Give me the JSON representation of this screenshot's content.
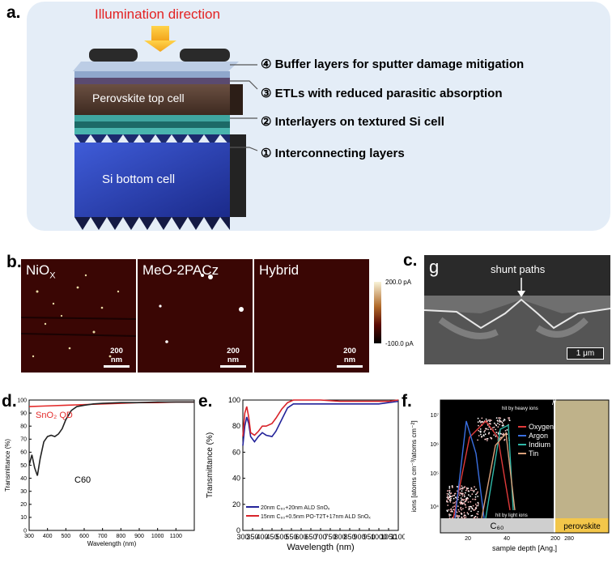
{
  "panels": {
    "a": {
      "letter": "a.",
      "illumination": "Illumination direction",
      "top_cell": "Perovskite top cell",
      "bottom_cell": "Si bottom cell",
      "callouts": [
        "④ Buffer layers for sputter damage mitigation",
        "③ ETLs with reduced parasitic absorption",
        "② Interlayers on textured Si cell",
        "① Interconnecting layers"
      ]
    },
    "b": {
      "letter": "b.",
      "images": [
        {
          "label_main": "NiO",
          "label_sub": "X",
          "scalebar": "200 nm"
        },
        {
          "label_main": "MeO-2PACz",
          "label_sub": "",
          "scalebar": "200 nm"
        },
        {
          "label_main": "Hybrid",
          "label_sub": "",
          "scalebar": "200 nm"
        }
      ],
      "colorbar_max": "200.0 pA",
      "colorbar_min": "-100.0 pA"
    },
    "c": {
      "letter": "c.",
      "inset_letter": "g",
      "annotation": "shunt paths",
      "scalebar": "1 μm"
    },
    "d": {
      "letter": "d."
    },
    "e": {
      "letter": "e."
    },
    "f": {
      "letter": "f."
    }
  },
  "chart_data": [
    {
      "type": "line",
      "xlabel": "Wavelength (nm)",
      "ylabel": "Transmittance (%)",
      "xlim": [
        300,
        1200
      ],
      "ylim": [
        0,
        100
      ],
      "xticks": [
        "300",
        "400",
        "500",
        "600",
        "700",
        "800",
        "900",
        "1000",
        "1100"
      ],
      "yticks": [
        "0",
        "10",
        "20",
        "30",
        "40",
        "50",
        "60",
        "70",
        "80",
        "90",
        "100"
      ],
      "series": [
        {
          "name": "SnO₂ QD",
          "color": "#e32b2b",
          "x": [
            300,
            400,
            500,
            600,
            700,
            800,
            900,
            1000,
            1100,
            1200
          ],
          "y": [
            95,
            95.5,
            96,
            96.5,
            97,
            97.5,
            98,
            98,
            98.5,
            98.5
          ]
        },
        {
          "name": "C60",
          "color": "#222222",
          "x": [
            300,
            315,
            330,
            345,
            360,
            380,
            400,
            420,
            440,
            460,
            480,
            500,
            530,
            560,
            600,
            650,
            700,
            800,
            900,
            1000,
            1100,
            1200
          ],
          "y": [
            50,
            58,
            48,
            42,
            55,
            68,
            72,
            73,
            72,
            74,
            78,
            85,
            92,
            95,
            96,
            97,
            97.5,
            98,
            98,
            98.5,
            98.5,
            98.5
          ]
        }
      ]
    },
    {
      "type": "line",
      "xlabel": "Wavelength (nm)",
      "ylabel": "Transmittance (%)",
      "xlim": [
        300,
        1100
      ],
      "ylim": [
        0,
        100
      ],
      "xticks": [
        "300",
        "350",
        "400",
        "450",
        "500",
        "550",
        "600",
        "650",
        "700",
        "750",
        "800",
        "850",
        "900",
        "950",
        "1000",
        "1050",
        "1100"
      ],
      "yticks": [
        "0",
        "20",
        "40",
        "60",
        "80",
        "100"
      ],
      "series": [
        {
          "name": "20nm C₆₀+20nm ALD SnOₓ",
          "color": "#23239a",
          "x": [
            300,
            310,
            320,
            330,
            340,
            360,
            380,
            400,
            420,
            450,
            470,
            500,
            530,
            560,
            600,
            700,
            800,
            900,
            1000,
            1050,
            1100
          ],
          "y": [
            65,
            80,
            87,
            82,
            72,
            68,
            72,
            75,
            73,
            72,
            76,
            85,
            94,
            97,
            97,
            97,
            97,
            97,
            97,
            98,
            99
          ]
        },
        {
          "name": "15nm C₆₀+0.5nm PO-T2T+17nm ALD SnOₓ",
          "color": "#d8232a",
          "x": [
            300,
            310,
            320,
            330,
            340,
            360,
            380,
            400,
            420,
            450,
            470,
            500,
            530,
            560,
            600,
            700,
            800,
            900,
            1000,
            1050,
            1100
          ],
          "y": [
            72,
            90,
            95,
            87,
            75,
            73,
            76,
            80,
            80,
            82,
            86,
            93,
            98,
            100,
            100,
            100,
            99,
            99,
            99,
            99,
            100
          ]
        }
      ]
    },
    {
      "type": "scatter",
      "xlabel": "sample depth [Ang.]",
      "ylabel": "ions [atoms cm⁻³/atoms cm⁻²]",
      "xticks": [
        "20",
        "40",
        "200",
        "280"
      ],
      "yticks": [
        "10⁴",
        "10⁵",
        "10⁶",
        "10⁷"
      ],
      "yscale": "log",
      "layers": [
        "C₆₀",
        "perovskite"
      ],
      "annotations": [
        "hit by heavy ions",
        "hit by light ions"
      ],
      "series": [
        {
          "name": "Oxygen",
          "color": "#e03a3a"
        },
        {
          "name": "Argon",
          "color": "#3a6fe0"
        },
        {
          "name": "Indium",
          "color": "#2fb8a8"
        },
        {
          "name": "Tin",
          "color": "#d9a07a"
        }
      ]
    }
  ]
}
